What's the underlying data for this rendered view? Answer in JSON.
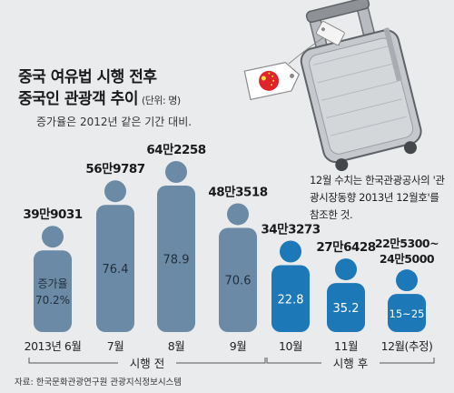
{
  "title_line1": "중국 여유법 시행 전후",
  "title_line2": "중국인 관광객 추이",
  "unit": "(단위: 명)",
  "subtitle": "증가율은 2012년 같은 기간 대비.",
  "note": "12월 수치는 한국관광공사의 '관광시장동향 2013년 12월호'를 참조한 것.",
  "source": "자료: 한국문화관광연구원 관광지식정보시스템",
  "colors": {
    "before": "#6b8aa5",
    "after": "#1d78b8",
    "background": "#e9ebed",
    "flag_red": "#e0242a"
  },
  "chart_data": {
    "type": "bar",
    "style": "human-figure pictogram",
    "categories": [
      "2013년 6월",
      "7월",
      "8월",
      "9월",
      "10월",
      "11월",
      "12월(추정)"
    ],
    "value_labels": [
      "39만9031",
      "56만9787",
      "64만2258",
      "48만3518",
      "34만3273",
      "27만6428",
      "22만5300~24만5000"
    ],
    "values": [
      399031,
      569787,
      642258,
      483518,
      343273,
      276428,
      235150
    ],
    "growth_labels": [
      "70.2%",
      "76.4",
      "78.9",
      "70.6",
      "22.8",
      "35.2",
      "15~25"
    ],
    "growth_prefix": "증가율",
    "groups": [
      {
        "label": "시행 전",
        "range": [
          0,
          3
        ],
        "color_key": "before"
      },
      {
        "label": "시행 후",
        "range": [
          4,
          6
        ],
        "color_key": "after"
      }
    ]
  }
}
